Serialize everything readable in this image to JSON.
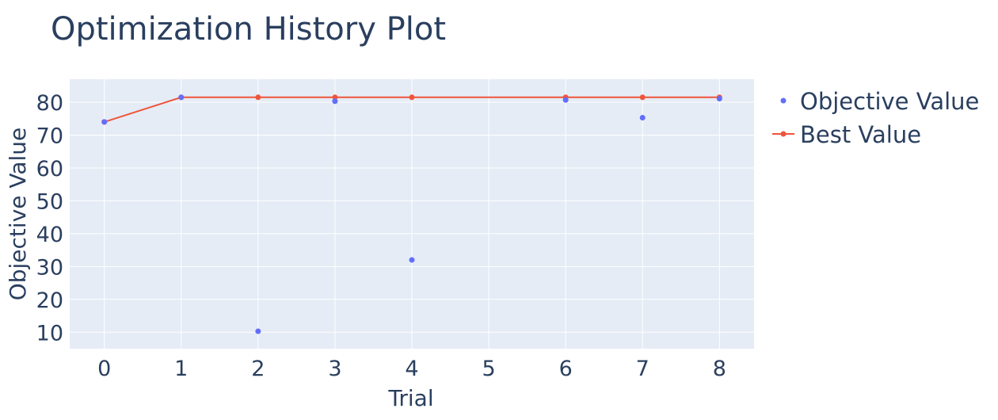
{
  "colors": {
    "plot_bg": "#e5ecf6",
    "grid": "#ffffff",
    "text": "#2a3f5f",
    "objective": "#636efa",
    "best": "#ef553b"
  },
  "chart_data": {
    "type": "scatter",
    "title": "Optimization History Plot",
    "xlabel": "Trial",
    "ylabel": "Objective Value",
    "xlim": [
      -0.45,
      8.45
    ],
    "ylim": [
      5,
      87
    ],
    "x_ticks": [
      0,
      1,
      2,
      3,
      4,
      5,
      6,
      7,
      8
    ],
    "y_ticks": [
      10,
      20,
      30,
      40,
      50,
      60,
      70,
      80
    ],
    "grid": true,
    "legend_position": "right",
    "series": [
      {
        "name": "Objective Value",
        "mode": "markers",
        "x": [
          0,
          1,
          2,
          3,
          4,
          6,
          7,
          8
        ],
        "y": [
          74,
          81.5,
          10.3,
          80.3,
          32,
          80.7,
          75.3,
          81.1
        ]
      },
      {
        "name": "Best Value",
        "mode": "lines+markers",
        "x": [
          0,
          1,
          2,
          3,
          4,
          6,
          7,
          8
        ],
        "y": [
          74,
          81.5,
          81.5,
          81.5,
          81.5,
          81.5,
          81.5,
          81.5
        ]
      }
    ]
  }
}
